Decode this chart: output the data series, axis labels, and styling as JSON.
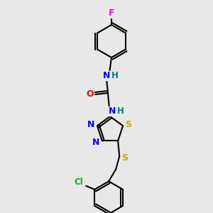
{
  "background_color": "#e8e8e8",
  "bond_color": "#000000",
  "atom_colors": {
    "F": "#ff00ff",
    "N": "#0000ff",
    "O": "#ff0000",
    "S": "#ccaa00",
    "Cl": "#00bb00",
    "C": "#000000",
    "H": "#008080"
  },
  "fig_width": 3.0,
  "fig_height": 3.0,
  "dpi": 100
}
